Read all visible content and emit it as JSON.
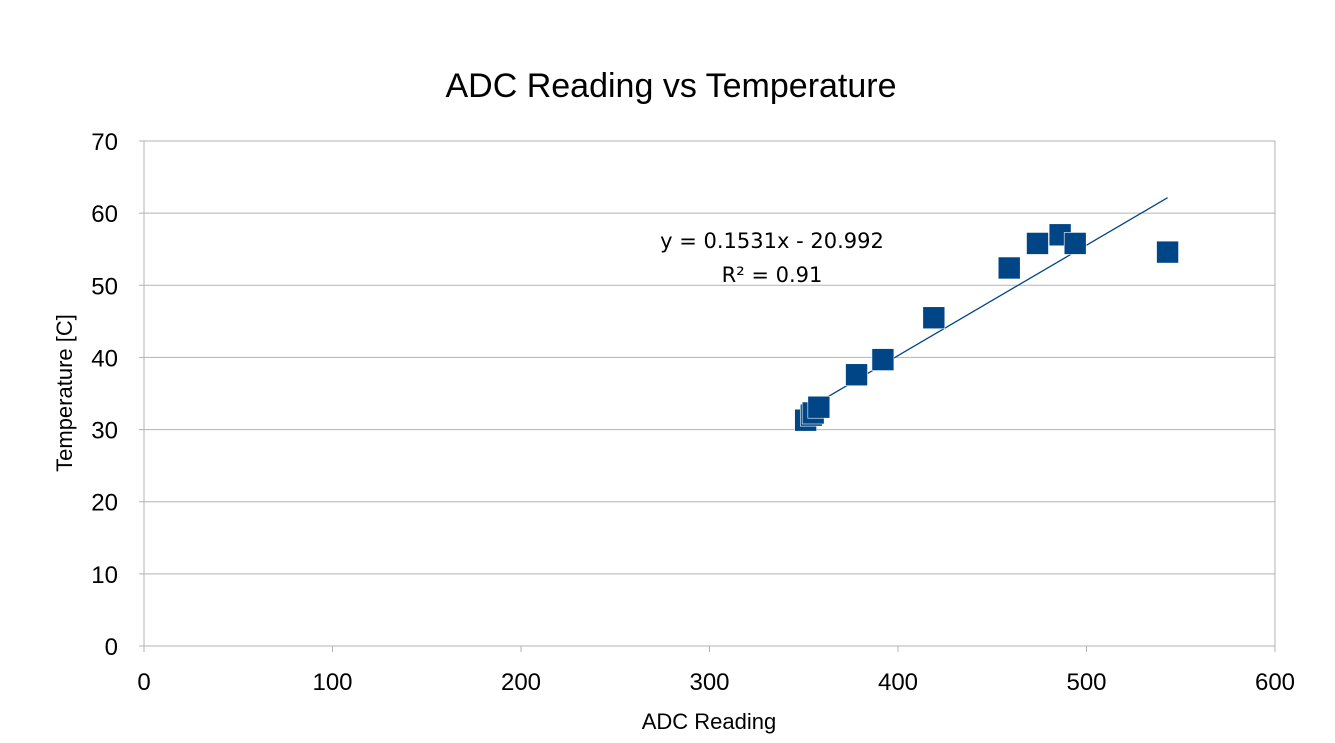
{
  "chart_data": {
    "type": "scatter",
    "title": "ADC Reading vs Temperature",
    "xlabel": "ADC Reading",
    "ylabel": "Temperature [C]",
    "xlim": [
      0,
      600
    ],
    "ylim": [
      0,
      70
    ],
    "x_ticks": [
      "0",
      "100",
      "200",
      "300",
      "400",
      "500",
      "600"
    ],
    "y_ticks": [
      "0",
      "10",
      "20",
      "30",
      "40",
      "50",
      "60",
      "70"
    ],
    "grid": "horizontal",
    "legend": "none",
    "series": [
      {
        "marker": "square",
        "color": "#004586",
        "points": [
          {
            "x": 351,
            "y": 31.3
          },
          {
            "x": 354,
            "y": 32.0
          },
          {
            "x": 355,
            "y": 32.3
          },
          {
            "x": 358,
            "y": 33.1
          },
          {
            "x": 378,
            "y": 37.6
          },
          {
            "x": 392,
            "y": 39.7
          },
          {
            "x": 419,
            "y": 45.5
          },
          {
            "x": 459,
            "y": 52.4
          },
          {
            "x": 474,
            "y": 55.8
          },
          {
            "x": 486,
            "y": 57.0
          },
          {
            "x": 494,
            "y": 55.8
          },
          {
            "x": 543,
            "y": 54.6
          }
        ]
      }
    ],
    "trendline": {
      "slope": 0.1531,
      "intercept": -20.992,
      "x_range": [
        351,
        543
      ],
      "color": "#004586",
      "equation_label": "y = 0.1531x - 20.992",
      "r2_label": "R² = 0.91"
    }
  }
}
